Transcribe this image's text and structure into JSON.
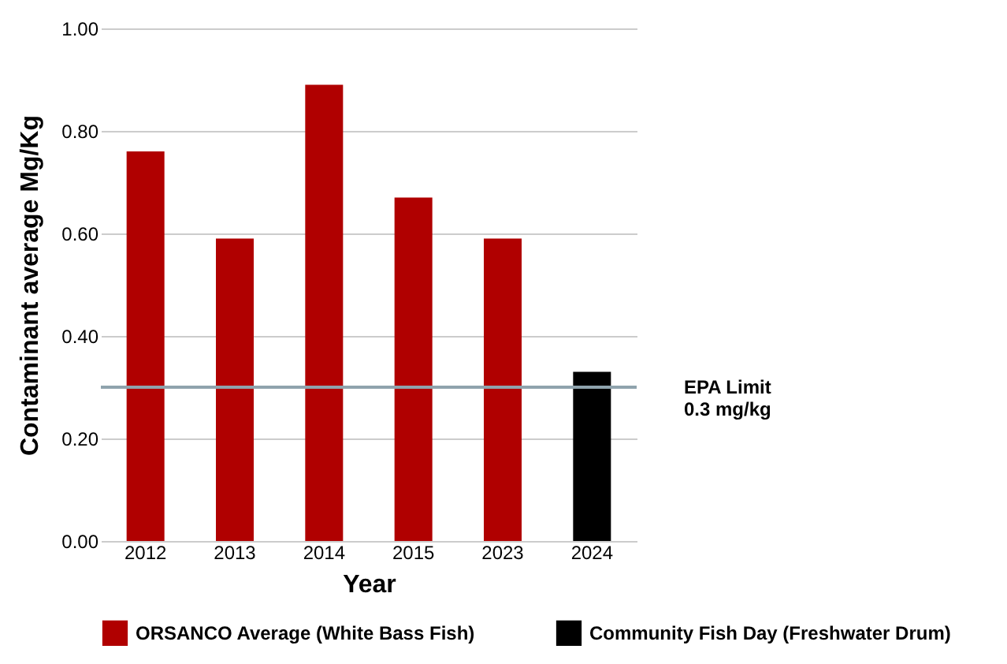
{
  "chart_data": {
    "type": "bar",
    "xlabel": "Year",
    "ylabel": "Contaminant average Mg/Kg",
    "categories": [
      "2012",
      "2013",
      "2014",
      "2015",
      "2023",
      "2024"
    ],
    "series": [
      {
        "name": "ORSANCO Average (White Bass Fish)",
        "color": "#b00000",
        "values": [
          0.76,
          0.59,
          0.89,
          0.67,
          0.59,
          null
        ]
      },
      {
        "name": "Community Fish Day (Freshwater Drum)",
        "color": "#000000",
        "values": [
          null,
          null,
          null,
          null,
          null,
          0.33
        ]
      }
    ],
    "ylim": [
      0,
      1
    ],
    "yticks": [
      {
        "value": 0,
        "label": "0.00"
      },
      {
        "value": 0.2,
        "label": "0.20"
      },
      {
        "value": 0.4,
        "label": "0.40"
      },
      {
        "value": 0.6,
        "label": "0.60"
      },
      {
        "value": 0.8,
        "label": "0.80"
      },
      {
        "value": 1,
        "label": "1.00"
      }
    ],
    "grid": "y",
    "legend": "bottom",
    "ref_lines": [
      {
        "axis": "y",
        "value": 0.3,
        "label": "EPA Limit\n0.3 mg/kg",
        "color": "#8fa3ad"
      }
    ]
  }
}
